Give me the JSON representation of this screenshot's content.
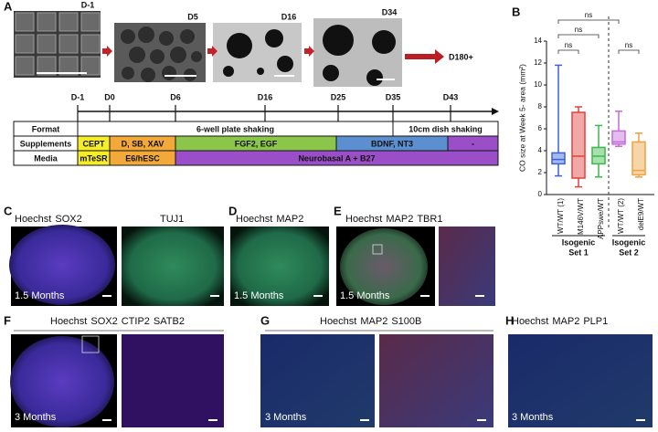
{
  "panel_labels": [
    "A",
    "B",
    "C",
    "D",
    "E",
    "F",
    "G",
    "H"
  ],
  "panel_a": {
    "image_labels": [
      "D-1",
      "D5",
      "D16",
      "D34"
    ],
    "endpoint": "D180+",
    "timeline": [
      "D-1",
      "D0",
      "D6",
      "D16",
      "D25",
      "D35",
      "D43"
    ],
    "table": {
      "row_labels": [
        "Format",
        "Supplements",
        "Media"
      ],
      "format": [
        "6-well plate shaking",
        "10cm dish shaking"
      ],
      "supplements": [
        "CEPT",
        "D, SB, XAV",
        "FGF2, EGF",
        "BDNF, NT3",
        "-"
      ],
      "media": [
        "mTeSR",
        "E6/hESC",
        "Neurobasal A + B27"
      ]
    }
  },
  "chart_data": {
    "type": "box",
    "y_label": "CO size at Week 5- area (mm²)",
    "categories": [
      "WT/WT (1)",
      "M146V/WT",
      "APPswe/WT",
      "WT/WT (2)",
      "delE9/WT"
    ],
    "series": [
      {
        "name": "WT/WT (1)",
        "color": "#3a62d6",
        "min": 1.7,
        "q1": 2.8,
        "median": 3.2,
        "q3": 3.8,
        "max": 11.8
      },
      {
        "name": "M146V/WT",
        "color": "#e0413c",
        "min": 0.7,
        "q1": 1.5,
        "median": 3.5,
        "q3": 7.5,
        "max": 8.0
      },
      {
        "name": "APPswe/WT",
        "color": "#3cb84a",
        "min": 1.6,
        "q1": 2.8,
        "median": 3.5,
        "q3": 4.3,
        "max": 6.3
      },
      {
        "name": "WT/WT (2)",
        "color": "#c46ad8",
        "min": 4.4,
        "q1": 4.6,
        "median": 4.8,
        "q3": 5.8,
        "max": 7.6
      },
      {
        "name": "delE9/WT",
        "color": "#f0a040",
        "min": 1.6,
        "q1": 1.8,
        "median": 2.2,
        "q3": 4.8,
        "max": 5.6
      }
    ],
    "ylim": [
      0,
      14
    ],
    "yticks": [
      0,
      2,
      4,
      6,
      8,
      10,
      12,
      14
    ],
    "annotations": [
      "ns",
      "ns",
      "ns",
      "ns"
    ],
    "groups": [
      [
        "Isogenic",
        "Set 1"
      ],
      [
        "Isogenic",
        "Set 2"
      ]
    ]
  },
  "panel_c": {
    "stains": [
      "Hoechst",
      "SOX2"
    ],
    "stains_2": [
      "TUJ1"
    ],
    "timepoint": "1.5 Months"
  },
  "panel_d": {
    "stains": [
      "Hoechst",
      "MAP2"
    ],
    "timepoint": "1.5 Months"
  },
  "panel_e": {
    "stains": [
      "Hoechst",
      "MAP2",
      "TBR1"
    ],
    "timepoint": "1.5 Months"
  },
  "panel_f": {
    "stains": [
      "Hoechst",
      "SOX2",
      "CTIP2",
      "SATB2"
    ],
    "timepoint": "3 Months"
  },
  "panel_g": {
    "stains": [
      "Hoechst",
      "MAP2",
      "S100B"
    ],
    "timepoint": "3 Months"
  },
  "panel_h": {
    "stains": [
      "Hoechst",
      "MAP2",
      "PLP1"
    ],
    "timepoint": "3 Months"
  }
}
